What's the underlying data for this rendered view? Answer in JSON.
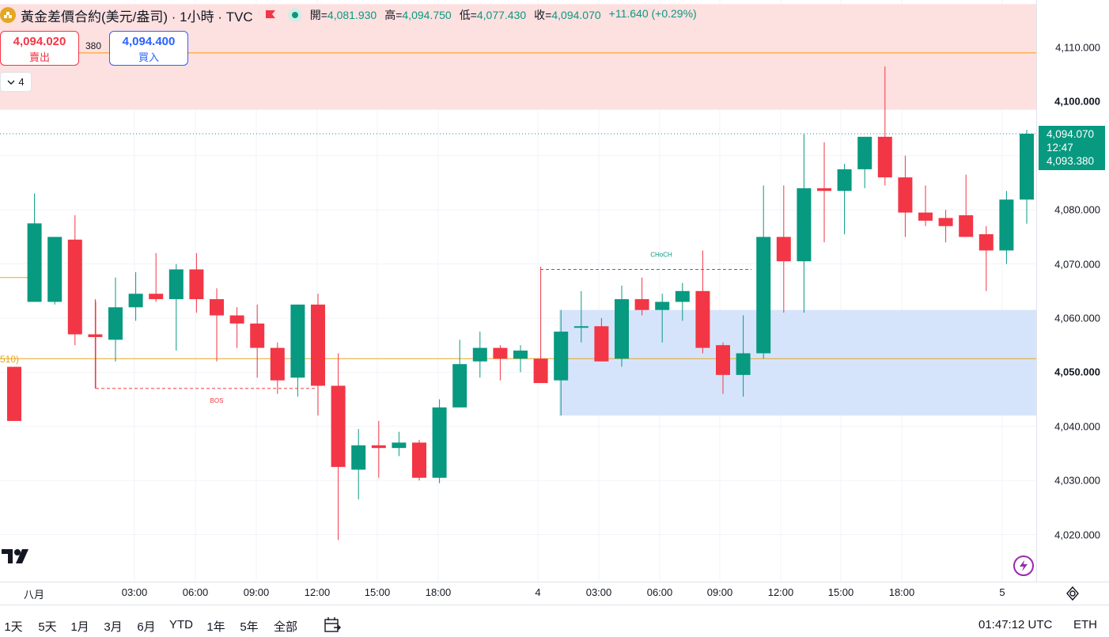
{
  "header": {
    "symbol_title": "黃金差價合約(美元/盎司) · 1小時 · TVC",
    "ohlc": [
      {
        "label": "開=",
        "value": "4,081.930"
      },
      {
        "label": "高=",
        "value": "4,094.750"
      },
      {
        "label": "低=",
        "value": "4,077.430"
      },
      {
        "label": "收=",
        "value": "4,094.070"
      }
    ],
    "change": "+11.640 (+0.29%)"
  },
  "trade": {
    "sell_price": "4,094.020",
    "sell_label": "賣出",
    "spread": "380",
    "buy_price": "4,094.400",
    "buy_label": "買入"
  },
  "indicators_count": "4",
  "cropped_label": "510)",
  "price_axis": {
    "ticks": [
      "4,110.000",
      "4,100.000",
      "4,080.000",
      "4,070.000",
      "4,060.000",
      "4,050.000",
      "4,040.000",
      "4,030.000",
      "4,020.000"
    ],
    "last_price": "4,094.070",
    "countdown": "12:47",
    "bid_price": "4,093.380"
  },
  "time_axis": [
    "八月",
    "03:00",
    "06:00",
    "09:00",
    "12:00",
    "15:00",
    "18:00",
    "4",
    "03:00",
    "06:00",
    "09:00",
    "12:00",
    "15:00",
    "18:00",
    "5"
  ],
  "annotations": {
    "bos": "BOS",
    "choch": "CHoCH"
  },
  "bottom": {
    "ranges": [
      "1天",
      "5天",
      "1月",
      "3月",
      "6月",
      "YTD",
      "1年",
      "5年",
      "全部"
    ],
    "clock": "01:47:12 UTC",
    "currency": "ETH"
  },
  "colors": {
    "up": "#089981",
    "down": "#f23645",
    "supply_zone": "#fde0e0",
    "demand_zone": "#d6e4fb",
    "level_line": "#e5a722"
  },
  "chart_data": {
    "type": "candlestick",
    "candles": [
      {
        "o": 4051.0,
        "h": 4051.0,
        "l": 4041.0,
        "c": 4041.0
      },
      {
        "o": 4063.0,
        "h": 4083.0,
        "l": 4063.0,
        "c": 4077.5
      },
      {
        "o": 4063.0,
        "h": 4075.0,
        "l": 4062.5,
        "c": 4075.0
      },
      {
        "o": 4074.5,
        "h": 4079.0,
        "l": 4055.0,
        "c": 4057.0
      },
      {
        "o": 4057.0,
        "h": 4063.5,
        "l": 4047.0,
        "c": 4056.5
      },
      {
        "o": 4056.0,
        "h": 4067.5,
        "l": 4052.0,
        "c": 4062.0
      },
      {
        "o": 4062.0,
        "h": 4068.5,
        "l": 4059.5,
        "c": 4064.5
      },
      {
        "o": 4064.5,
        "h": 4072.0,
        "l": 4063.0,
        "c": 4063.5
      },
      {
        "o": 4063.5,
        "h": 4070.0,
        "l": 4054.0,
        "c": 4069.0
      },
      {
        "o": 4069.0,
        "h": 4072.0,
        "l": 4061.0,
        "c": 4063.5
      },
      {
        "o": 4063.5,
        "h": 4065.5,
        "l": 4052.0,
        "c": 4060.5
      },
      {
        "o": 4060.5,
        "h": 4062.0,
        "l": 4054.5,
        "c": 4059.0
      },
      {
        "o": 4059.0,
        "h": 4062.5,
        "l": 4049.0,
        "c": 4054.5
      },
      {
        "o": 4054.5,
        "h": 4055.5,
        "l": 4046.0,
        "c": 4048.5
      },
      {
        "o": 4049.0,
        "h": 4062.5,
        "l": 4045.5,
        "c": 4062.5
      },
      {
        "o": 4062.5,
        "h": 4064.5,
        "l": 4042.0,
        "c": 4047.5
      },
      {
        "o": 4047.5,
        "h": 4053.5,
        "l": 4019.0,
        "c": 4032.5
      },
      {
        "o": 4032.0,
        "h": 4039.5,
        "l": 4026.5,
        "c": 4036.5
      },
      {
        "o": 4036.5,
        "h": 4041.0,
        "l": 4030.5,
        "c": 4036.0
      },
      {
        "o": 4036.0,
        "h": 4039.0,
        "l": 4034.5,
        "c": 4037.0
      },
      {
        "o": 4037.0,
        "h": 4037.5,
        "l": 4030.0,
        "c": 4030.5
      },
      {
        "o": 4030.5,
        "h": 4045.0,
        "l": 4029.5,
        "c": 4043.5
      },
      {
        "o": 4043.5,
        "h": 4056.0,
        "l": 4043.5,
        "c": 4051.5
      },
      {
        "o": 4052.0,
        "h": 4057.5,
        "l": 4049.0,
        "c": 4054.5
      },
      {
        "o": 4054.5,
        "h": 4055.0,
        "l": 4048.5,
        "c": 4052.5
      },
      {
        "o": 4052.5,
        "h": 4055.0,
        "l": 4050.0,
        "c": 4054.0
      },
      {
        "o": 4052.5,
        "h": 4069.5,
        "l": 4048.5,
        "c": 4048.0
      },
      {
        "o": 4048.5,
        "h": 4061.5,
        "l": 4042.0,
        "c": 4057.5
      },
      {
        "o": 4058.5,
        "h": 4065.0,
        "l": 4055.5,
        "c": 4058.5
      },
      {
        "o": 4058.5,
        "h": 4060.0,
        "l": 4052.5,
        "c": 4052.0
      },
      {
        "o": 4052.5,
        "h": 4066.0,
        "l": 4051.0,
        "c": 4063.5
      },
      {
        "o": 4063.5,
        "h": 4067.5,
        "l": 4060.5,
        "c": 4061.5
      },
      {
        "o": 4061.5,
        "h": 4064.5,
        "l": 4055.5,
        "c": 4063.0
      },
      {
        "o": 4063.0,
        "h": 4066.5,
        "l": 4059.5,
        "c": 4065.0
      },
      {
        "o": 4065.0,
        "h": 4072.5,
        "l": 4053.5,
        "c": 4054.5
      },
      {
        "o": 4055.0,
        "h": 4055.5,
        "l": 4046.0,
        "c": 4049.5
      },
      {
        "o": 4049.5,
        "h": 4060.5,
        "l": 4045.5,
        "c": 4053.5
      },
      {
        "o": 4053.5,
        "h": 4084.5,
        "l": 4052.5,
        "c": 4075.0
      },
      {
        "o": 4075.0,
        "h": 4084.5,
        "l": 4061.0,
        "c": 4070.5
      },
      {
        "o": 4070.5,
        "h": 4094.0,
        "l": 4061.0,
        "c": 4084.0
      },
      {
        "o": 4084.0,
        "h": 4092.5,
        "l": 4074.0,
        "c": 4083.5
      },
      {
        "o": 4083.5,
        "h": 4088.5,
        "l": 4075.5,
        "c": 4087.5
      },
      {
        "o": 4087.5,
        "h": 4093.5,
        "l": 4084.0,
        "c": 4093.5
      },
      {
        "o": 4093.5,
        "h": 4106.5,
        "l": 4084.5,
        "c": 4086.0
      },
      {
        "o": 4086.0,
        "h": 4090.0,
        "l": 4075.0,
        "c": 4079.5
      },
      {
        "o": 4079.5,
        "h": 4084.5,
        "l": 4077.0,
        "c": 4078.0
      },
      {
        "o": 4078.5,
        "h": 4080.0,
        "l": 4074.0,
        "c": 4077.0
      },
      {
        "o": 4079.0,
        "h": 4086.5,
        "l": 4075.0,
        "c": 4075.0
      },
      {
        "o": 4075.5,
        "h": 4077.0,
        "l": 4065.0,
        "c": 4072.5
      },
      {
        "o": 4072.5,
        "h": 4083.5,
        "l": 4070.0,
        "c": 4081.9
      },
      {
        "o": 4081.9,
        "h": 4094.75,
        "l": 4077.43,
        "c": 4094.07
      }
    ],
    "ylim": [
      4015,
      4118
    ],
    "levels": [
      {
        "price": 4109.0,
        "color": "#ff9800",
        "type": "solid"
      },
      {
        "price": 4094.07,
        "color": "#089981",
        "type": "dotted"
      },
      {
        "price": 4067.5,
        "color": "#e5a722",
        "type": "solid",
        "partial": "left"
      },
      {
        "price": 4052.5,
        "color": "#e5a722",
        "type": "solid"
      }
    ],
    "zones": [
      {
        "top": 4118,
        "bottom": 4098.5,
        "color": "#fde0e0"
      },
      {
        "top": 4061.5,
        "bottom": 4042.0,
        "color": "#d6e4fb"
      }
    ],
    "structure_lines": [
      {
        "label": "BOS",
        "price": 4047.0,
        "color": "#f23645"
      },
      {
        "label": "CHoCH",
        "price": 4069.0,
        "color": "#089981"
      }
    ]
  }
}
